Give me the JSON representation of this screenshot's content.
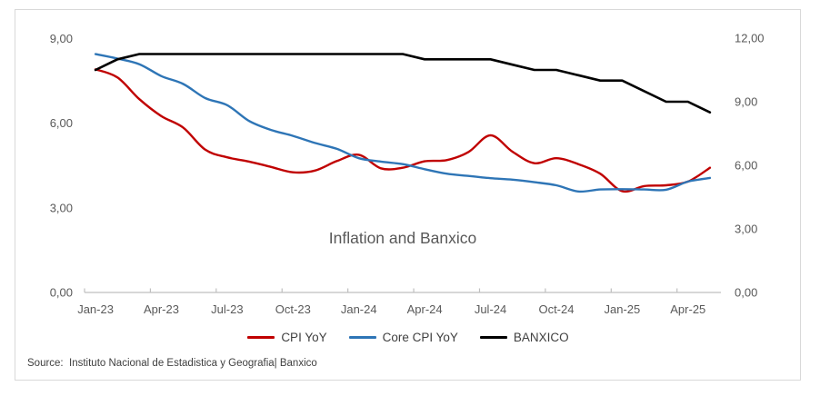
{
  "title": "Inflation and Banxico",
  "source": "Source:  Instituto Nacional de Estadistica y Geografia| Banxico",
  "colors": {
    "cpi": "#C00000",
    "core_cpi": "#2E75B6",
    "banxico": "#000000",
    "axis_line": "#BFBFBF",
    "tick_text": "#595959",
    "frame_border": "#D9D9D9"
  },
  "chart_data": {
    "type": "line",
    "title": "Inflation and Banxico",
    "grid": false,
    "legend_position": "bottom",
    "x": [
      "Jan-23",
      "Feb-23",
      "Mar-23",
      "Apr-23",
      "May-23",
      "Jun-23",
      "Jul-23",
      "Aug-23",
      "Sep-23",
      "Oct-23",
      "Nov-23",
      "Dec-23",
      "Jan-24",
      "Feb-24",
      "Mar-24",
      "Apr-24",
      "May-24",
      "Jun-24",
      "Jul-24",
      "Aug-24",
      "Sep-24",
      "Oct-24",
      "Nov-24",
      "Dec-24",
      "Jan-25",
      "Feb-25",
      "Mar-25",
      "Apr-25",
      "May-25"
    ],
    "x_tick_labels": [
      "Jan-23",
      "Apr-23",
      "Jul-23",
      "Oct-23",
      "Jan-24",
      "Apr-24",
      "Jul-24",
      "Oct-24",
      "Jan-25",
      "Apr-25"
    ],
    "left_axis": {
      "range": [
        0,
        9
      ],
      "tick_values": [
        0,
        3,
        6,
        9
      ],
      "ticks": [
        "0,00",
        "3,00",
        "6,00",
        "9,00"
      ]
    },
    "right_axis": {
      "range": [
        0,
        12
      ],
      "tick_values": [
        0,
        3,
        6,
        9,
        12
      ],
      "ticks": [
        "0,00",
        "3,00",
        "6,00",
        "9,00",
        "12,00"
      ]
    },
    "series": [
      {
        "name": "CPI YoY",
        "color": "#C00000",
        "axis": "left",
        "smooth": true,
        "width": 2.4,
        "values": [
          7.91,
          7.62,
          6.85,
          6.25,
          5.84,
          5.06,
          4.79,
          4.64,
          4.45,
          4.26,
          4.32,
          4.66,
          4.88,
          4.4,
          4.42,
          4.65,
          4.69,
          4.98,
          5.57,
          4.99,
          4.58,
          4.76,
          4.55,
          4.21,
          3.59,
          3.77,
          3.8,
          3.93,
          4.42
        ]
      },
      {
        "name": "Core CPI YoY",
        "color": "#2E75B6",
        "axis": "left",
        "smooth": true,
        "width": 2.4,
        "values": [
          8.45,
          8.29,
          8.09,
          7.67,
          7.39,
          6.89,
          6.64,
          6.08,
          5.76,
          5.55,
          5.3,
          5.09,
          4.76,
          4.64,
          4.55,
          4.37,
          4.21,
          4.13,
          4.05,
          4.0,
          3.91,
          3.8,
          3.58,
          3.65,
          3.66,
          3.65,
          3.64,
          3.93,
          4.06
        ]
      },
      {
        "name": "BANXICO",
        "color": "#000000",
        "axis": "right",
        "smooth": false,
        "width": 2.6,
        "values": [
          10.5,
          11.0,
          11.25,
          11.25,
          11.25,
          11.25,
          11.25,
          11.25,
          11.25,
          11.25,
          11.25,
          11.25,
          11.25,
          11.25,
          11.25,
          11.0,
          11.0,
          11.0,
          11.0,
          10.75,
          10.5,
          10.5,
          10.25,
          10.0,
          10.0,
          9.5,
          9.0,
          9.0,
          8.5
        ]
      }
    ]
  }
}
